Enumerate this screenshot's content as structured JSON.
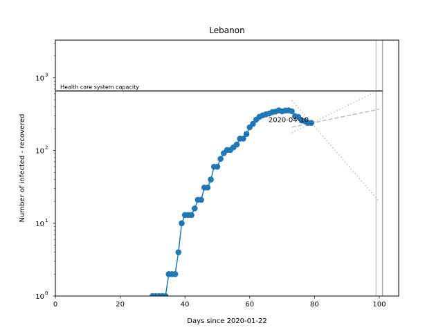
{
  "chart_data": {
    "type": "line",
    "title": "Lebanon",
    "xlabel": "Days since 2020-01-22",
    "ylabel": "Number of infected - recovered",
    "yscale": "log",
    "xlim": [
      0,
      106
    ],
    "ylim": [
      1,
      3300
    ],
    "xticks": [
      0,
      20,
      40,
      60,
      80,
      100
    ],
    "yticks": [
      {
        "value": 1,
        "base": "10",
        "exp": "0"
      },
      {
        "value": 10,
        "base": "10",
        "exp": "1"
      },
      {
        "value": 100,
        "base": "10",
        "exp": "2"
      },
      {
        "value": 1000,
        "base": "10",
        "exp": "3"
      }
    ],
    "grid": false,
    "series": [
      {
        "color": "#1f77b4",
        "marker": "circle",
        "x": [
          30,
          31,
          32,
          33,
          34,
          35,
          36,
          37,
          38,
          39,
          40,
          41,
          42,
          43,
          44,
          45,
          46,
          47,
          48,
          49,
          50,
          51,
          52,
          53,
          54,
          55,
          56,
          57,
          58,
          59,
          60,
          61,
          62,
          63,
          64,
          65,
          66,
          67,
          68,
          69,
          70,
          71,
          72,
          73,
          74,
          75,
          76,
          77,
          78,
          79
        ],
        "y": [
          1,
          1,
          1,
          1,
          1,
          2,
          2,
          2,
          4,
          10,
          13,
          13,
          13,
          16,
          21,
          21,
          31,
          31,
          40,
          60,
          60,
          77,
          92,
          102,
          102,
          111,
          121,
          146,
          146,
          169,
          209,
          233,
          266,
          291,
          305,
          315,
          323,
          338,
          344,
          357,
          346,
          355,
          357,
          347,
          298,
          290,
          260,
          254,
          240,
          240
        ]
      }
    ],
    "capacity": {
      "label": "Health care system capacity",
      "value": 660,
      "color": "#000000"
    },
    "annotation": {
      "text": "2020-04-10",
      "x": 72,
      "y": 270
    },
    "projections": [
      {
        "style": "dashed",
        "color": "#bbbbbb",
        "x": [
          73,
          100
        ],
        "y": [
          210,
          370
        ]
      },
      {
        "style": "dotted",
        "color": "#bbbbbb",
        "x": [
          73,
          100
        ],
        "y": [
          490,
          20
        ]
      },
      {
        "style": "dotted",
        "color": "#bbbbbb",
        "x": [
          73,
          100
        ],
        "y": [
          175,
          680
        ]
      }
    ],
    "vlines": [
      {
        "x": 99,
        "color": "#cccccc"
      },
      {
        "x": 101,
        "color": "#aaaaaa"
      }
    ]
  }
}
